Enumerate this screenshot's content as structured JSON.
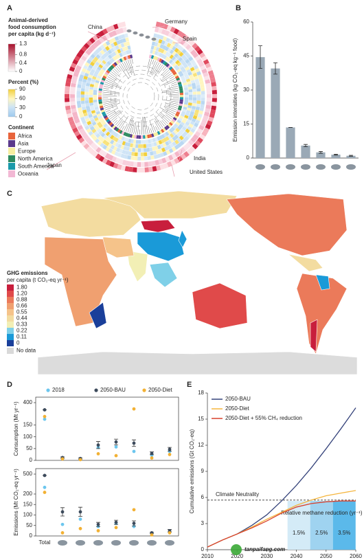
{
  "panel_labels": [
    "A",
    "B",
    "C",
    "D",
    "E"
  ],
  "watermark": "tanpaifang.com",
  "chart_data": [
    {
      "type": "circular-heatmap",
      "countries": [
        "China",
        "Germany",
        "Spain",
        "Japan",
        "India",
        "United States"
      ],
      "consumption_legend": {
        "title": [
          "Animal-derived",
          "food consumption",
          "per capita (kg d⁻¹)"
        ],
        "ticks": [
          1.3,
          0.8,
          0.4,
          0
        ]
      },
      "percent_legend": {
        "title": "Percent (%)",
        "ticks": [
          90,
          60,
          30,
          0
        ]
      },
      "continent_legend": {
        "title": "Continent",
        "names": [
          "Africa",
          "Asia",
          "Europe",
          "North America",
          "South America",
          "Oceania"
        ],
        "colors": [
          "#e8643c",
          "#5b3a8c",
          "#f6eea0",
          "#2d8a5f",
          "#1b9aaa",
          "#f2b8d4"
        ]
      }
    },
    {
      "type": "bar",
      "y_label": "Emission intensities (kg CO₂-eq kg⁻¹ food)",
      "categories": [
        null,
        null,
        null,
        null,
        null,
        null,
        null
      ],
      "values": [
        44.5,
        39.5,
        13.5,
        5.5,
        2.5,
        1.5,
        1.0
      ],
      "errors": [
        5,
        2.5,
        0,
        0.5,
        0.4,
        0.2,
        0.2
      ],
      "color": "#9aa9b6",
      "ylim": [
        0,
        60
      ],
      "yticks": [
        0,
        15,
        30,
        45,
        60
      ]
    },
    {
      "type": "map",
      "legend_title": "GHG emissions",
      "legend_subtitle": "per capita (t CO₂-eq yr⁻¹)",
      "ticks": [
        {
          "value": 1.8,
          "label": "1.80"
        },
        {
          "value": 1.2,
          "label": "1.20"
        },
        0.88,
        0.66,
        0.55,
        0.44,
        0.33,
        0.22,
        0.11,
        0
      ],
      "colors": [
        "#c81e3c",
        "#e04a4a",
        "#eb7a5a",
        "#f0a070",
        "#f5c38a",
        "#f3dca0",
        "#f2efb5",
        "#7fd0e8",
        "#1a9ad8",
        "#1a3f9a"
      ],
      "no_data_label": "No data",
      "no_data_color": "#d9d9d9"
    },
    {
      "type": "dot",
      "y_label": "Consumption (Mt yr⁻¹)",
      "yticks": [
        0,
        50,
        100,
        150,
        400
      ],
      "ylim": [
        0,
        420
      ],
      "series": [
        {
          "name": "2018",
          "color": "#6cc6ee",
          "values": [
            215,
            8,
            5,
            55,
            57,
            38,
            22,
            38
          ]
        },
        {
          "name": "2050-BAU",
          "color": "#3d4b5c",
          "values": [
            320,
            12,
            8,
            65,
            78,
            73,
            30,
            47
          ],
          "errors": [
            0,
            3,
            3,
            15,
            12,
            14,
            6,
            8
          ]
        },
        {
          "name": "2050-Diet",
          "color": "#f2b134",
          "values": [
            245,
            6,
            3,
            28,
            20,
            330,
            10,
            25
          ]
        }
      ]
    },
    {
      "type": "dot",
      "y_label": "Emissions (Mt CO₂-eq yr⁻¹)",
      "categories": [
        "Total",
        null,
        null,
        null,
        null,
        null,
        null,
        null
      ],
      "yticks": [
        0,
        50,
        100,
        150,
        200,
        500
      ],
      "ylim": [
        0,
        520
      ],
      "series": [
        {
          "color": "#6cc6ee",
          "values": [
            300,
            55,
            80,
            45,
            60,
            45,
            10,
            20
          ]
        },
        {
          "color": "#3d4b5c",
          "values": [
            480,
            115,
            115,
            55,
            65,
            60,
            15,
            25
          ],
          "errors": [
            0,
            20,
            22,
            10,
            10,
            12,
            3,
            6
          ]
        },
        {
          "color": "#f2b134",
          "values": [
            225,
            15,
            35,
            25,
            40,
            125,
            5,
            15
          ]
        }
      ]
    },
    {
      "type": "line",
      "y_label": "Cumulative emissions (Gt CO₂-eq)",
      "x": [
        2010,
        2015,
        2020,
        2025,
        2030,
        2035,
        2040,
        2045,
        2050,
        2055,
        2060
      ],
      "xlim": [
        2010,
        2060
      ],
      "xticks": [
        2010,
        2020,
        2030,
        2040,
        2050,
        2060
      ],
      "ylim": [
        0,
        18
      ],
      "yticks": [
        0,
        3,
        6,
        9,
        12,
        15,
        18
      ],
      "series": [
        {
          "name": "2050-BAU",
          "color": "#34427a",
          "values": [
            0.3,
            1.1,
            1.8,
            2.8,
            4.0,
            5.6,
            7.4,
            9.4,
            11.6,
            13.9,
            16.3
          ]
        },
        {
          "name": "2050-Diet",
          "color": "#f5b53c",
          "values": [
            0.3,
            1.1,
            1.8,
            2.6,
            3.5,
            4.3,
            5.1,
            5.7,
            6.2,
            6.5,
            6.8
          ]
        },
        {
          "name": "2050-Diet + 55% CH₄ reduction",
          "color": "#d9402b",
          "values": [
            0.3,
            1.1,
            1.8,
            2.5,
            3.3,
            4.2,
            4.9,
            5.3,
            5.5,
            5.6,
            5.6
          ]
        }
      ],
      "hline": {
        "value": 5.7,
        "label": "Climate Neutrality"
      },
      "band_title": "Relative methane reduction (yr⁻¹)",
      "band_labels": [
        "1.5%",
        "2.5%",
        "3.5%"
      ]
    }
  ]
}
